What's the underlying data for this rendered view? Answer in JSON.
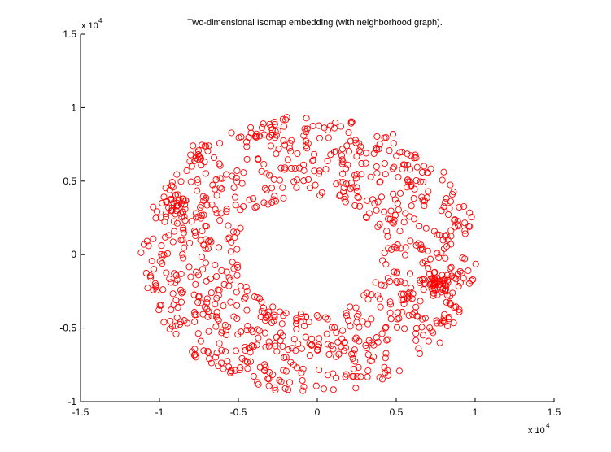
{
  "chart_data": {
    "type": "scatter",
    "title": "Two-dimensional Isomap embedding (with neighborhood graph).",
    "xlabel": "",
    "ylabel": "",
    "xlim": [
      -15000,
      15000
    ],
    "ylim": [
      -10000,
      15000
    ],
    "x_ticks": [
      -1.5,
      -1,
      -0.5,
      0,
      0.5,
      1,
      1.5
    ],
    "y_ticks": [
      -1,
      -0.5,
      0,
      0.5,
      1,
      1.5
    ],
    "x_tick_labels": [
      "-1.5",
      "-1",
      "-0.5",
      "0",
      "0.5",
      "1",
      "1.5"
    ],
    "y_tick_labels": [
      "-1",
      "-0.5",
      "0",
      "0.5",
      "1",
      "1.5"
    ],
    "x_exponent": {
      "base": "x 10",
      "power": "4"
    },
    "y_exponent": {
      "base": "x 10",
      "power": "4"
    },
    "multiplier": 10000,
    "grid": false,
    "legend": "none",
    "marker": "circle-open",
    "marker_color": "#ff0000",
    "shape": "annulus",
    "center": [
      -500,
      0
    ],
    "inner_radius": 4500,
    "outer_radius": 10500,
    "num_points": 1000,
    "dense_clusters": [
      {
        "x": 7500,
        "y": -2000,
        "points": 40
      },
      {
        "x": -9000,
        "y": 3300,
        "points": 25
      },
      {
        "x": -7500,
        "y": 7000,
        "points": 12
      }
    ],
    "point_count_note": "Approximately 1000 open circles distributed in a ring"
  }
}
